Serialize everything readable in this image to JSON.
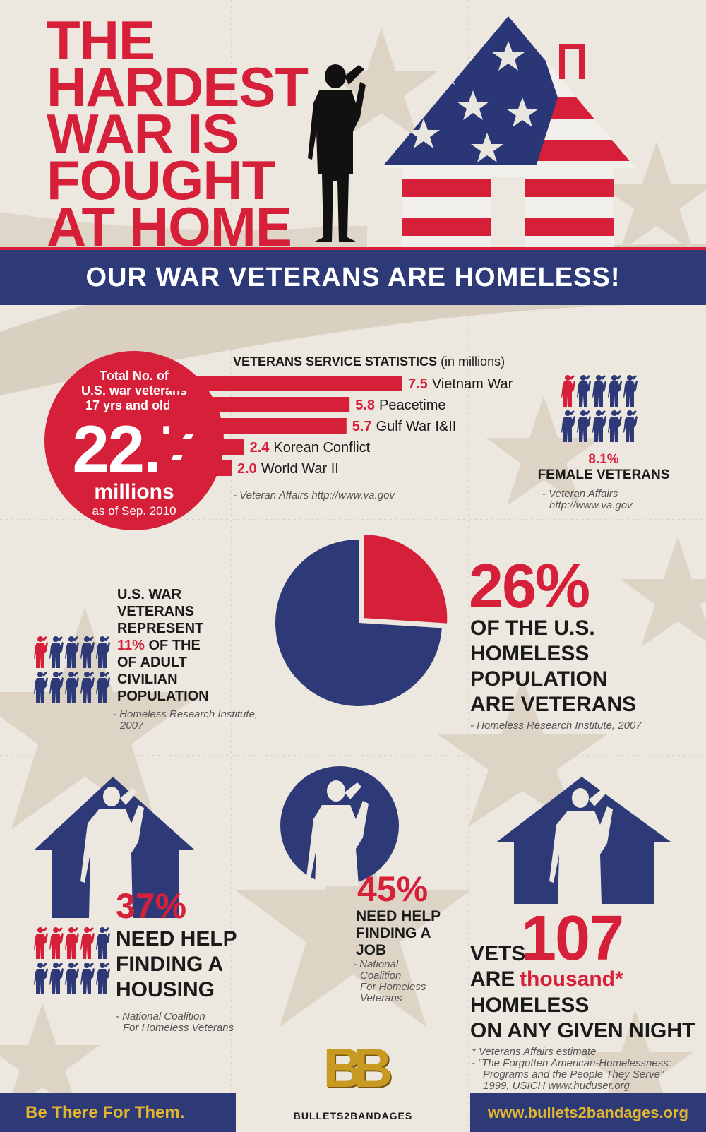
{
  "header": {
    "title_lines": [
      "THE",
      "HARDEST",
      "WAR IS",
      "FOUGHT",
      "AT HOME"
    ],
    "banner": "OUR WAR VETERANS ARE HOMELESS!"
  },
  "total": {
    "line1": "Total No. of",
    "line2": "U.S. war veterans",
    "line3": "17 yrs and older",
    "value": "22.7",
    "unit": "millions",
    "date": "as of Sep. 2010"
  },
  "service_stats": {
    "title": "VETERANS SERVICE STATISTICS",
    "title_suffix": "(in millions)",
    "source": "- Veteran Affairs http://www.va.gov",
    "chart_data": {
      "type": "bar",
      "categories": [
        "Vietnam War",
        "Peacetime",
        "Gulf War I&II",
        "Korean Conflict",
        "World War II"
      ],
      "values": [
        7.5,
        5.8,
        5.7,
        2.4,
        2.0
      ],
      "value_labels": [
        "7.5",
        "5.8",
        "5.7",
        "2.4",
        "2.0"
      ]
    }
  },
  "female": {
    "value": "8.1%",
    "label": "FEMALE VETERANS",
    "source1": "- Veteran Affairs",
    "source2": "http://www.va.gov"
  },
  "adult_pop": {
    "lines": [
      "U.S. WAR",
      "VETERANS",
      "REPRESENT"
    ],
    "highlight": "11%",
    "line4_rest": " OF THE",
    "lines2": [
      "OF ADULT",
      "CIVILIAN",
      "POPULATION"
    ],
    "source1": "- Homeless Research Institute,",
    "source2": "2007"
  },
  "pie": {
    "chart_data": {
      "type": "pie",
      "values": [
        26,
        74
      ],
      "colors": [
        "#d6203a",
        "#2e3a78"
      ]
    },
    "value": "26%",
    "lines": [
      "OF THE U.S.",
      "HOMELESS",
      "POPULATION",
      "ARE VETERANS"
    ],
    "source": "- Homeless Research Institute, 2007"
  },
  "housing": {
    "value": "37%",
    "lines": [
      "NEED HELP",
      "FINDING A",
      "HOUSING"
    ],
    "source1": "- National Coalition",
    "source2": "For Homeless Veterans"
  },
  "job": {
    "value": "45%",
    "lines": [
      "NEED HELP",
      "FINDING A",
      "JOB"
    ],
    "source_lines": [
      "- National",
      "Coalition",
      "For Homeless",
      "Veterans"
    ]
  },
  "homeless_night": {
    "vets": "VETS",
    "are": "ARE",
    "value": "107",
    "unit": "thousand*",
    "lines": [
      "HOMELESS",
      "ON ANY GIVEN NIGHT"
    ],
    "note1": "*  Veterans Affairs estimate",
    "note2": "- “The Forgotten American-Homelessness:",
    "note3": "Programs and the People They Serve”",
    "note4": "1999, USICH  www.huduser.org"
  },
  "footer": {
    "slogan": "Be There For Them.",
    "brand": "BULLETS2BANDAGES",
    "logo_letters": "BB",
    "url": "www.bullets2bandages.org"
  },
  "colors": {
    "red": "#d6203a",
    "navy": "#2e3a78",
    "background": "#ece7df",
    "gold": "#e2b52e"
  }
}
